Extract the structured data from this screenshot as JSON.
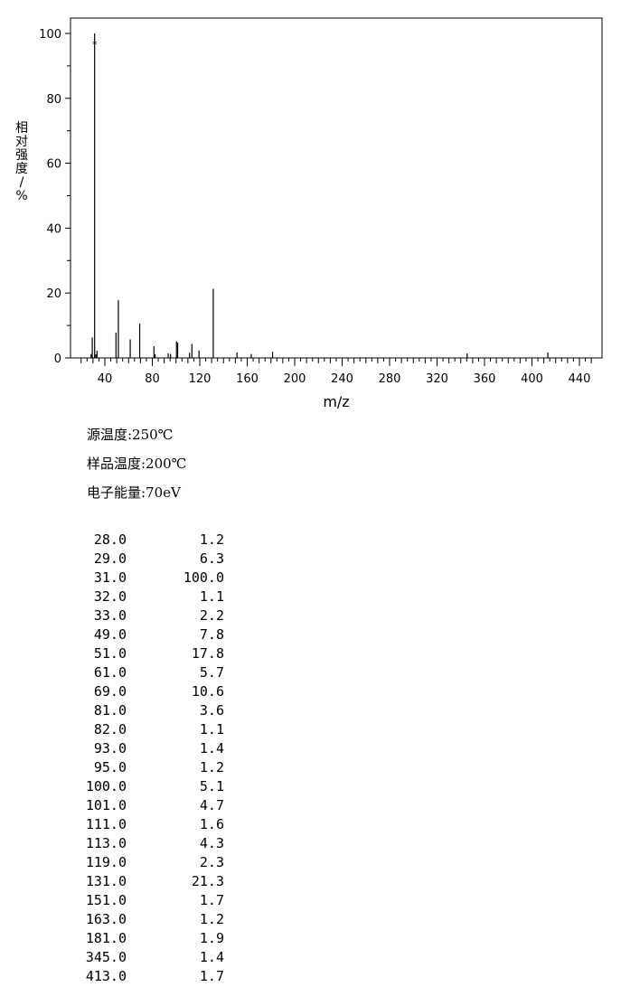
{
  "chart_data": {
    "type": "bar",
    "xlabel": "m/z",
    "ylabel": "相对强度/%",
    "xlim": [
      20,
      455
    ],
    "ylim": [
      0,
      100
    ],
    "xticks": [
      40,
      80,
      120,
      160,
      200,
      240,
      280,
      320,
      360,
      400,
      440
    ],
    "yticks": [
      0,
      20,
      40,
      60,
      80,
      100
    ],
    "base_peak_marker": "*",
    "peaks": [
      {
        "mz": 28.0,
        "intensity": 1.2
      },
      {
        "mz": 29.0,
        "intensity": 6.3
      },
      {
        "mz": 31.0,
        "intensity": 100.0
      },
      {
        "mz": 32.0,
        "intensity": 1.1
      },
      {
        "mz": 33.0,
        "intensity": 2.2
      },
      {
        "mz": 49.0,
        "intensity": 7.8
      },
      {
        "mz": 51.0,
        "intensity": 17.8
      },
      {
        "mz": 61.0,
        "intensity": 5.7
      },
      {
        "mz": 69.0,
        "intensity": 10.6
      },
      {
        "mz": 81.0,
        "intensity": 3.6
      },
      {
        "mz": 82.0,
        "intensity": 1.1
      },
      {
        "mz": 93.0,
        "intensity": 1.4
      },
      {
        "mz": 95.0,
        "intensity": 1.2
      },
      {
        "mz": 100.0,
        "intensity": 5.1
      },
      {
        "mz": 101.0,
        "intensity": 4.7
      },
      {
        "mz": 111.0,
        "intensity": 1.6
      },
      {
        "mz": 113.0,
        "intensity": 4.3
      },
      {
        "mz": 119.0,
        "intensity": 2.3
      },
      {
        "mz": 131.0,
        "intensity": 21.3
      },
      {
        "mz": 151.0,
        "intensity": 1.7
      },
      {
        "mz": 163.0,
        "intensity": 1.2
      },
      {
        "mz": 181.0,
        "intensity": 1.9
      },
      {
        "mz": 345.0,
        "intensity": 1.4
      },
      {
        "mz": 413.0,
        "intensity": 1.7
      }
    ]
  },
  "conditions": {
    "source_temp": "源温度:250℃",
    "sample_temp": "样品温度:200℃",
    "electron_energy": "电子能量:70eV"
  },
  "peak_table": [
    {
      "mz": "28.0",
      "intensity": "1.2"
    },
    {
      "mz": "29.0",
      "intensity": "6.3"
    },
    {
      "mz": "31.0",
      "intensity": "100.0"
    },
    {
      "mz": "32.0",
      "intensity": "1.1"
    },
    {
      "mz": "33.0",
      "intensity": "2.2"
    },
    {
      "mz": "49.0",
      "intensity": "7.8"
    },
    {
      "mz": "51.0",
      "intensity": "17.8"
    },
    {
      "mz": "61.0",
      "intensity": "5.7"
    },
    {
      "mz": "69.0",
      "intensity": "10.6"
    },
    {
      "mz": "81.0",
      "intensity": "3.6"
    },
    {
      "mz": "82.0",
      "intensity": "1.1"
    },
    {
      "mz": "93.0",
      "intensity": "1.4"
    },
    {
      "mz": "95.0",
      "intensity": "1.2"
    },
    {
      "mz": "100.0",
      "intensity": "5.1"
    },
    {
      "mz": "101.0",
      "intensity": "4.7"
    },
    {
      "mz": "111.0",
      "intensity": "1.6"
    },
    {
      "mz": "113.0",
      "intensity": "4.3"
    },
    {
      "mz": "119.0",
      "intensity": "2.3"
    },
    {
      "mz": "131.0",
      "intensity": "21.3"
    },
    {
      "mz": "151.0",
      "intensity": "1.7"
    },
    {
      "mz": "163.0",
      "intensity": "1.2"
    },
    {
      "mz": "181.0",
      "intensity": "1.9"
    },
    {
      "mz": "345.0",
      "intensity": "1.4"
    },
    {
      "mz": "413.0",
      "intensity": "1.7"
    }
  ]
}
